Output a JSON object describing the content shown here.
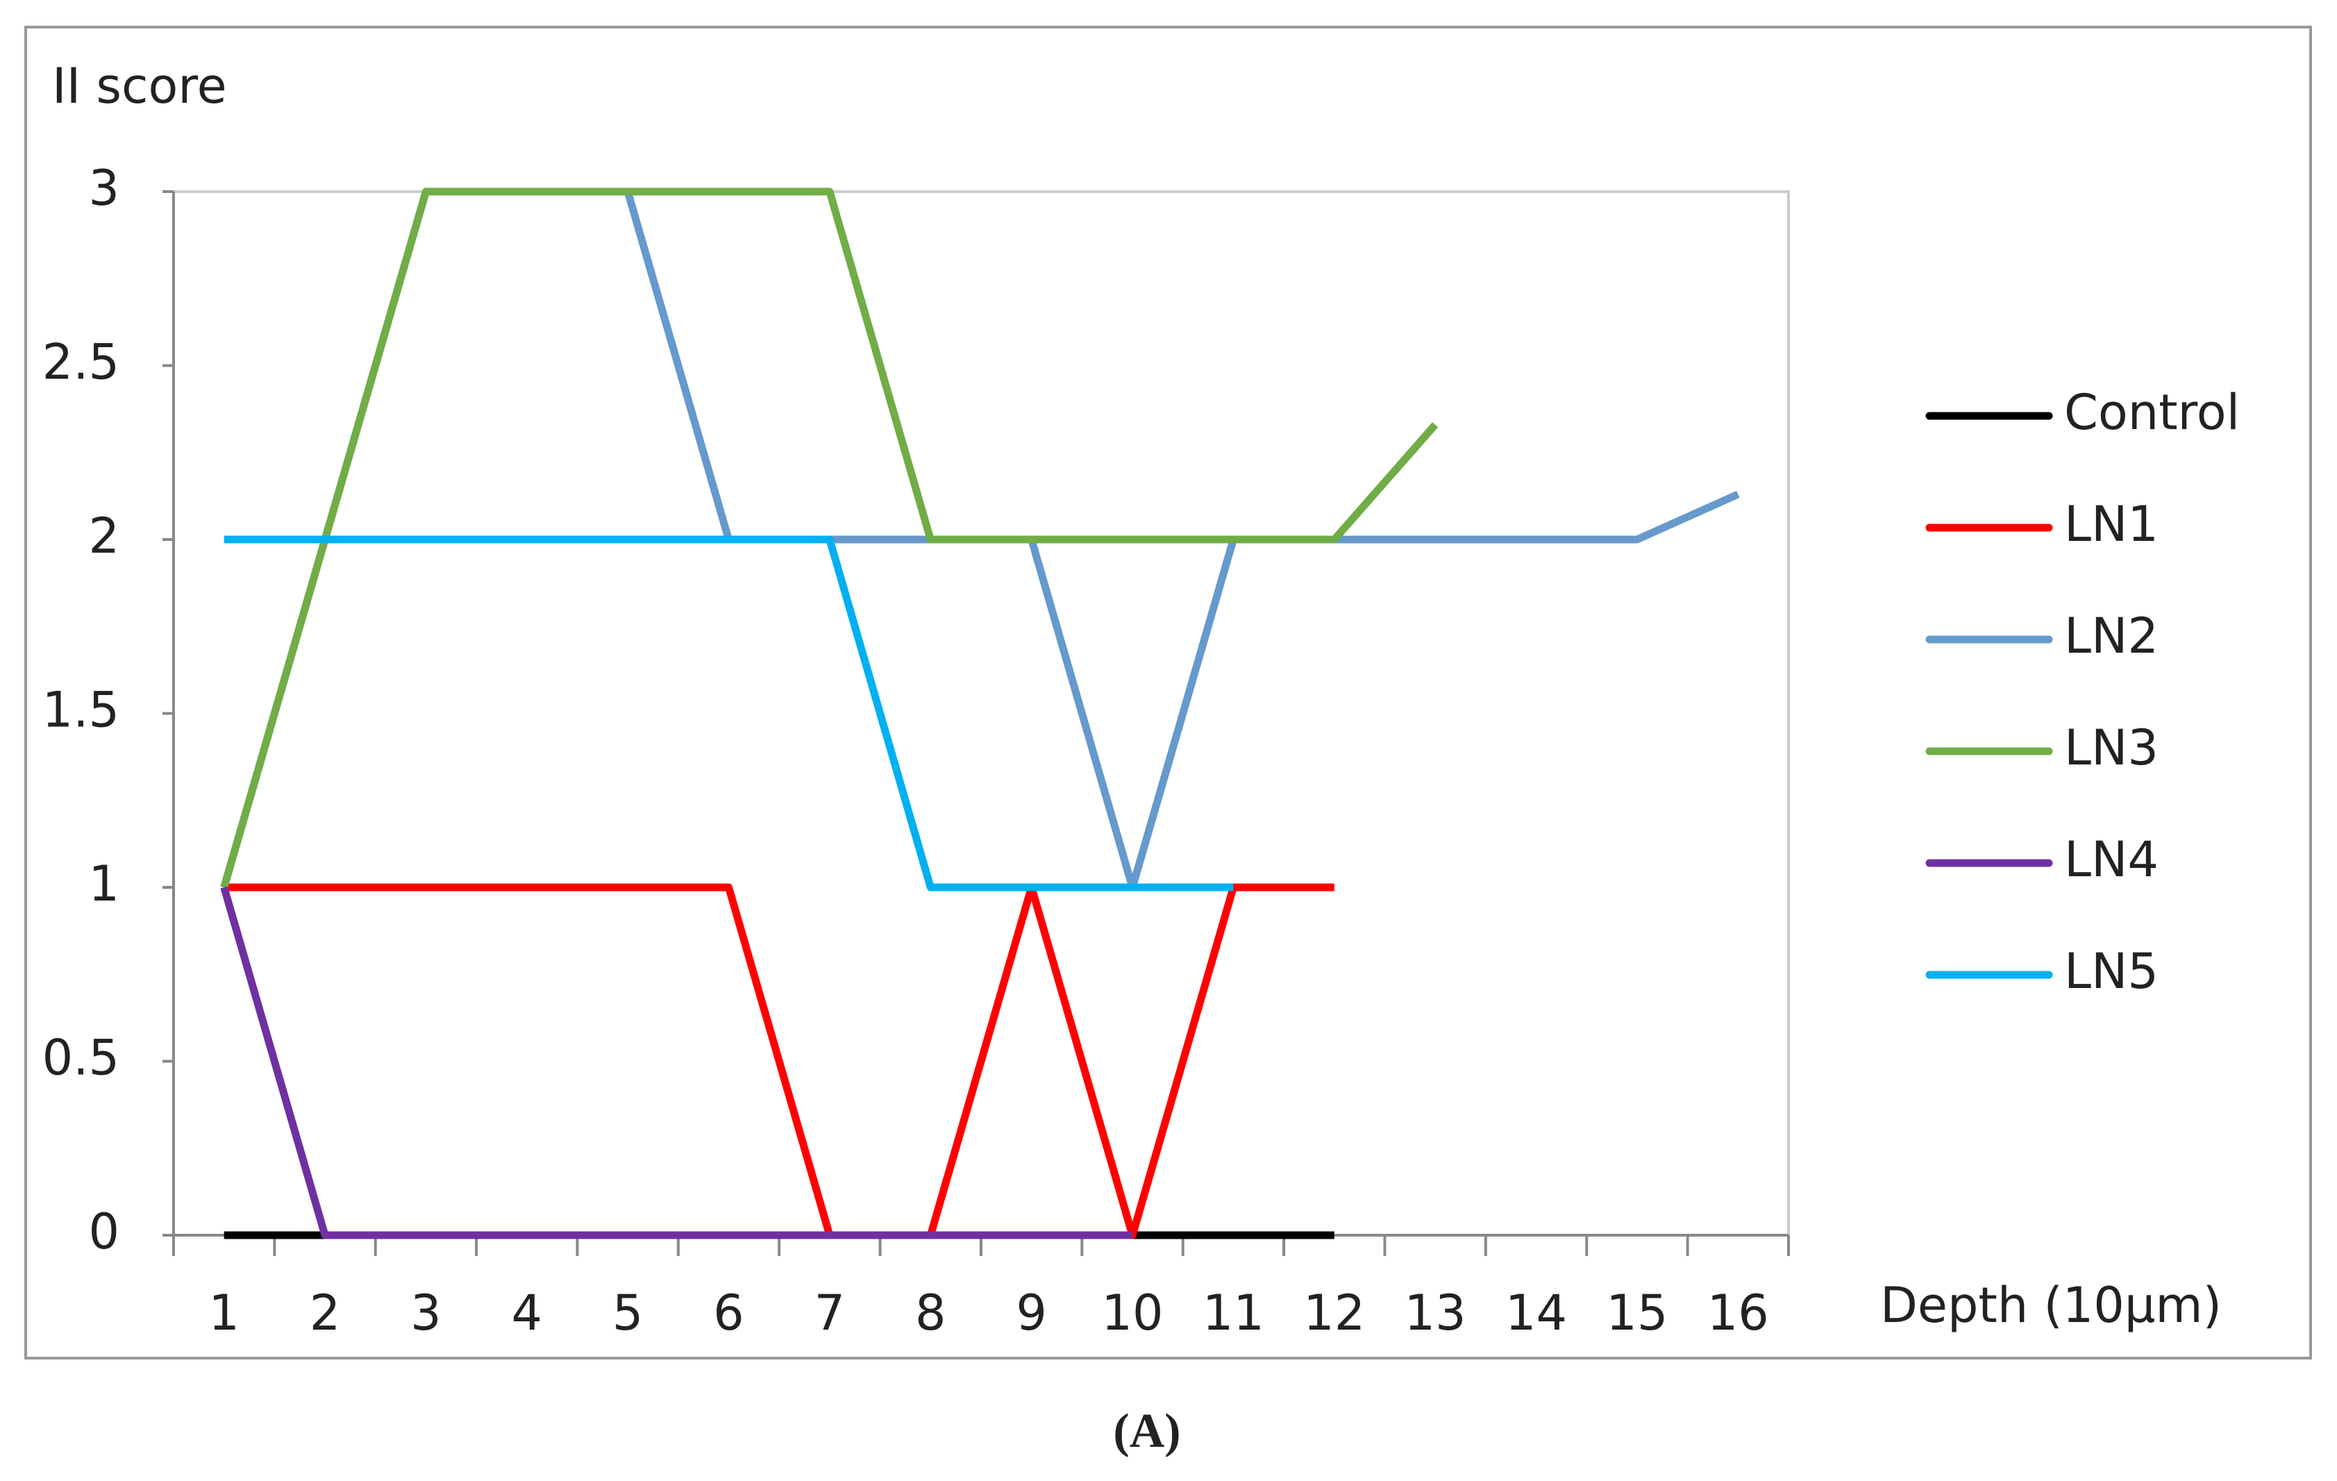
{
  "chart_data": {
    "type": "line",
    "y_label": "II score",
    "x_label": "Depth (10µm)",
    "caption": "(A)",
    "categories": [
      "1",
      "2",
      "3",
      "4",
      "5",
      "6",
      "7",
      "8",
      "9",
      "10",
      "11",
      "12",
      "13",
      "14",
      "15",
      "16"
    ],
    "series": [
      {
        "name": "Control",
        "color": "#000000",
        "values": [
          0,
          0,
          0,
          0,
          0,
          0,
          0,
          0,
          0,
          0,
          0,
          0,
          null,
          null,
          null,
          null
        ]
      },
      {
        "name": "LN1",
        "color": "#ff0000",
        "values": [
          1,
          1,
          1,
          1,
          1,
          1,
          0,
          0,
          1,
          0,
          1,
          1,
          null,
          null,
          null,
          null
        ]
      },
      {
        "name": "LN2",
        "color": "#6699cc",
        "values": [
          1,
          2,
          3,
          3,
          3,
          2,
          2,
          2,
          2,
          1,
          2,
          2,
          2,
          2,
          2,
          2.13
        ]
      },
      {
        "name": "LN3",
        "color": "#70ad47",
        "values": [
          1,
          2,
          3,
          3,
          3,
          3,
          3,
          2,
          2,
          2,
          2,
          2,
          2.33,
          null,
          null,
          null
        ]
      },
      {
        "name": "LN4",
        "color": "#7030a0",
        "values": [
          1,
          0,
          0,
          0,
          0,
          0,
          0,
          0,
          0,
          0,
          null,
          null,
          null,
          null,
          null,
          null
        ]
      },
      {
        "name": "LN5",
        "color": "#00b0f0",
        "values": [
          2,
          2,
          2,
          2,
          2,
          2,
          2,
          1,
          1,
          1,
          1,
          null,
          null,
          null,
          null,
          null
        ]
      }
    ],
    "ylim": [
      0,
      3
    ],
    "yticks": [
      0,
      0.5,
      1,
      1.5,
      2,
      2.5,
      3
    ],
    "grid": false,
    "legend": "right"
  }
}
